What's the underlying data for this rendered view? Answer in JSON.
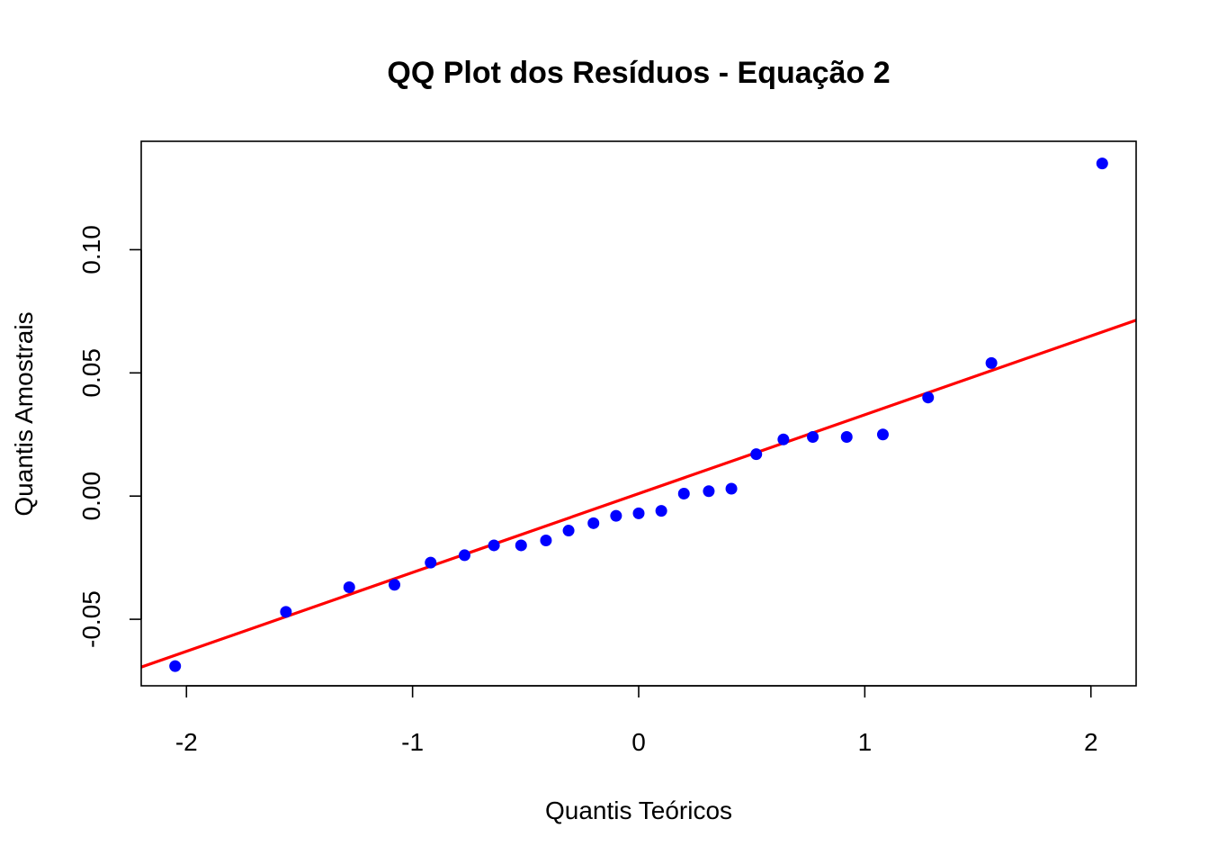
{
  "chart_data": {
    "type": "scatter",
    "title": "QQ Plot dos Resíduos - Equação 2",
    "xlabel": "Quantis Teóricos",
    "ylabel": "Quantis Amostrais",
    "xlim": [
      -2.2,
      2.2
    ],
    "ylim": [
      -0.077,
      0.144
    ],
    "x_ticks": [
      {
        "value": -2,
        "label": "-2"
      },
      {
        "value": -1,
        "label": "-1"
      },
      {
        "value": 0,
        "label": "0"
      },
      {
        "value": 1,
        "label": "1"
      },
      {
        "value": 2,
        "label": "2"
      }
    ],
    "y_ticks": [
      {
        "value": -0.05,
        "label": "-0.05"
      },
      {
        "value": 0.0,
        "label": "0.00"
      },
      {
        "value": 0.05,
        "label": "0.05"
      },
      {
        "value": 0.1,
        "label": "0.10"
      }
    ],
    "grid": false,
    "point_color": "#0000ff",
    "line_color": "#ff0000",
    "points": [
      {
        "x": -2.05,
        "y": -0.069
      },
      {
        "x": -1.56,
        "y": -0.047
      },
      {
        "x": -1.28,
        "y": -0.037
      },
      {
        "x": -1.08,
        "y": -0.036
      },
      {
        "x": -0.92,
        "y": -0.027
      },
      {
        "x": -0.77,
        "y": -0.024
      },
      {
        "x": -0.64,
        "y": -0.02
      },
      {
        "x": -0.52,
        "y": -0.02
      },
      {
        "x": -0.41,
        "y": -0.018
      },
      {
        "x": -0.31,
        "y": -0.014
      },
      {
        "x": -0.2,
        "y": -0.011
      },
      {
        "x": -0.1,
        "y": -0.008
      },
      {
        "x": 0.0,
        "y": -0.007
      },
      {
        "x": 0.1,
        "y": -0.006
      },
      {
        "x": 0.2,
        "y": 0.001
      },
      {
        "x": 0.31,
        "y": 0.002
      },
      {
        "x": 0.41,
        "y": 0.003
      },
      {
        "x": 0.52,
        "y": 0.017
      },
      {
        "x": 0.64,
        "y": 0.023
      },
      {
        "x": 0.77,
        "y": 0.024
      },
      {
        "x": 0.92,
        "y": 0.024
      },
      {
        "x": 1.08,
        "y": 0.025
      },
      {
        "x": 1.28,
        "y": 0.04
      },
      {
        "x": 1.56,
        "y": 0.054
      },
      {
        "x": 2.05,
        "y": 0.135
      }
    ],
    "reference_line": {
      "intercept": 0.001,
      "slope": 0.032
    }
  }
}
